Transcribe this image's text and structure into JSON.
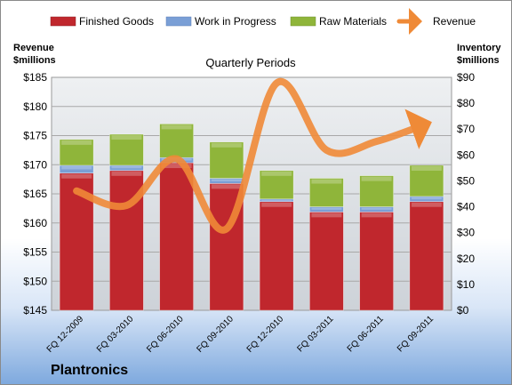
{
  "chart_data": {
    "type": "bar",
    "stacked": true,
    "title": "Quarterly Periods",
    "company": "Plantronics",
    "categories": [
      "FQ 12-2009",
      "FQ 03-2010",
      "FQ 06-2010",
      "FQ 09-2010",
      "FQ 12-2010",
      "FQ 03-2011",
      "FQ 06-2011",
      "FQ 09-2011"
    ],
    "series": [
      {
        "name": "Finished Goods",
        "axis": "right",
        "color": "#c0272d",
        "values": [
          53,
          54,
          57,
          49,
          42,
          38,
          38,
          42
        ]
      },
      {
        "name": "Work in Progress",
        "axis": "right",
        "color": "#7a9fd6",
        "values": [
          3,
          2,
          2,
          2,
          1,
          2,
          2,
          2
        ]
      },
      {
        "name": "Raw Materials",
        "axis": "right",
        "color": "#8fb53a",
        "values": [
          10,
          12,
          13,
          14,
          11,
          11,
          12,
          12
        ]
      },
      {
        "name": "Revenue",
        "axis": "left",
        "type": "line",
        "color": "#ef8a37",
        "values": [
          165.5,
          163,
          171,
          159,
          184,
          172.5,
          174,
          177
        ]
      }
    ],
    "left_axis": {
      "label_line1": "Revenue",
      "label_line2": "$millions",
      "min": 145,
      "max": 185,
      "step": 5,
      "prefix": "$"
    },
    "right_axis": {
      "label_line1": "Inventory",
      "label_line2": "$millions",
      "min": 0,
      "max": 90,
      "step": 10,
      "prefix": "$"
    },
    "grid": true,
    "legend_position": "top"
  }
}
